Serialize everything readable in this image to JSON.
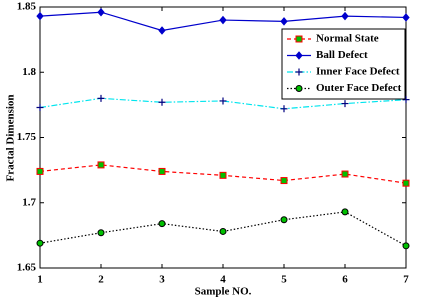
{
  "chart_data": {
    "type": "line",
    "x_label": "Sample NO.",
    "y_label": "Fractal Dimension",
    "x": [
      1,
      2,
      3,
      4,
      5,
      6,
      7
    ],
    "xlim": [
      1,
      7
    ],
    "xticks": [
      1,
      2,
      3,
      4,
      5,
      6,
      7
    ],
    "ylim": [
      1.65,
      1.85
    ],
    "yticks": [
      1.65,
      1.7,
      1.75,
      1.8,
      1.85
    ],
    "legend": "upper-right",
    "series": [
      {
        "name": "Normal State",
        "color": "#ff0000",
        "dash": "dashed",
        "marker": "square",
        "marker_fill": "#00c000",
        "values": [
          1.724,
          1.729,
          1.724,
          1.721,
          1.717,
          1.722,
          1.715
        ]
      },
      {
        "name": "Ball Defect",
        "color": "#0000cc",
        "dash": "solid",
        "marker": "diamond",
        "marker_fill": "#0000cc",
        "values": [
          1.843,
          1.846,
          1.832,
          1.84,
          1.839,
          1.843,
          1.842
        ]
      },
      {
        "name": "Inner Face Defect",
        "color": "#00e5ee",
        "dash": "dashdot",
        "marker": "plus",
        "marker_fill": "#000080",
        "values": [
          1.773,
          1.78,
          1.777,
          1.778,
          1.772,
          1.776,
          1.779
        ]
      },
      {
        "name": "Outer Face Defect",
        "color": "#000000",
        "dash": "dotted",
        "marker": "circle",
        "marker_fill": "#00c000",
        "values": [
          1.669,
          1.677,
          1.684,
          1.678,
          1.687,
          1.693,
          1.667
        ]
      }
    ]
  }
}
